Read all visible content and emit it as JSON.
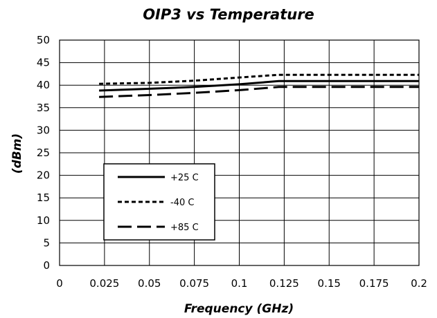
{
  "chart_data": {
    "type": "line",
    "title": "OIP3 vs Temperature",
    "xlabel": "Frequency (GHz)",
    "ylabel": "(dBm)",
    "xlim": [
      0,
      0.2
    ],
    "ylim": [
      0,
      50
    ],
    "x_ticks": [
      "0",
      "0.025",
      "0.05",
      "0.075",
      "0.1",
      "0.125",
      "0.15",
      "0.175",
      "0.2"
    ],
    "y_ticks": [
      "0",
      "5",
      "10",
      "15",
      "20",
      "25",
      "30",
      "35",
      "40",
      "45",
      "50"
    ],
    "grid": true,
    "legend_placement": "lower-left",
    "series": [
      {
        "name": "+25 C",
        "style": "solid",
        "x": [
          0.022,
          0.05,
          0.075,
          0.1,
          0.122,
          0.15,
          0.175,
          0.2
        ],
        "y": [
          38.8,
          39.2,
          39.6,
          40.2,
          40.9,
          40.9,
          40.9,
          40.9
        ]
      },
      {
        "name": "-40 C",
        "style": "short-dash",
        "x": [
          0.022,
          0.05,
          0.075,
          0.1,
          0.122,
          0.15,
          0.175,
          0.2
        ],
        "y": [
          40.3,
          40.5,
          41.0,
          41.7,
          42.3,
          42.3,
          42.3,
          42.3
        ]
      },
      {
        "name": "+85 C",
        "style": "long-dash",
        "x": [
          0.022,
          0.05,
          0.075,
          0.1,
          0.122,
          0.15,
          0.175,
          0.2
        ],
        "y": [
          37.4,
          37.8,
          38.3,
          38.9,
          39.6,
          39.6,
          39.6,
          39.6
        ]
      }
    ]
  }
}
